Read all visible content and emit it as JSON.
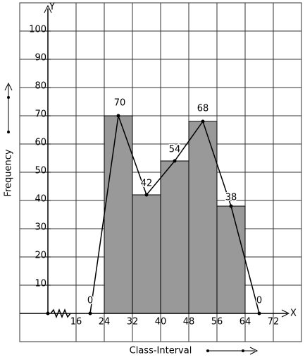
{
  "chart_data": {
    "type": "histogram",
    "bins": [
      24,
      32,
      40,
      48,
      56,
      64
    ],
    "values": [
      70,
      42,
      54,
      68,
      38
    ],
    "color": "#999999",
    "polygon": {
      "x": [
        20,
        28,
        36,
        44,
        52,
        60,
        68
      ],
      "values": [
        0,
        70,
        42,
        54,
        68,
        38,
        0
      ],
      "color": "#000000"
    },
    "xlim": [
      0,
      80
    ],
    "ylim": [
      -10,
      110
    ],
    "xticks": [
      16,
      24,
      32,
      40,
      48,
      56,
      64,
      72
    ],
    "yticks": [
      10,
      20,
      30,
      40,
      50,
      60,
      70,
      80,
      90,
      100
    ],
    "grid": true,
    "x_label": "Class-Interval",
    "y_label": "Frequency",
    "x_axis_name": "X",
    "y_axis_name": "Y"
  }
}
